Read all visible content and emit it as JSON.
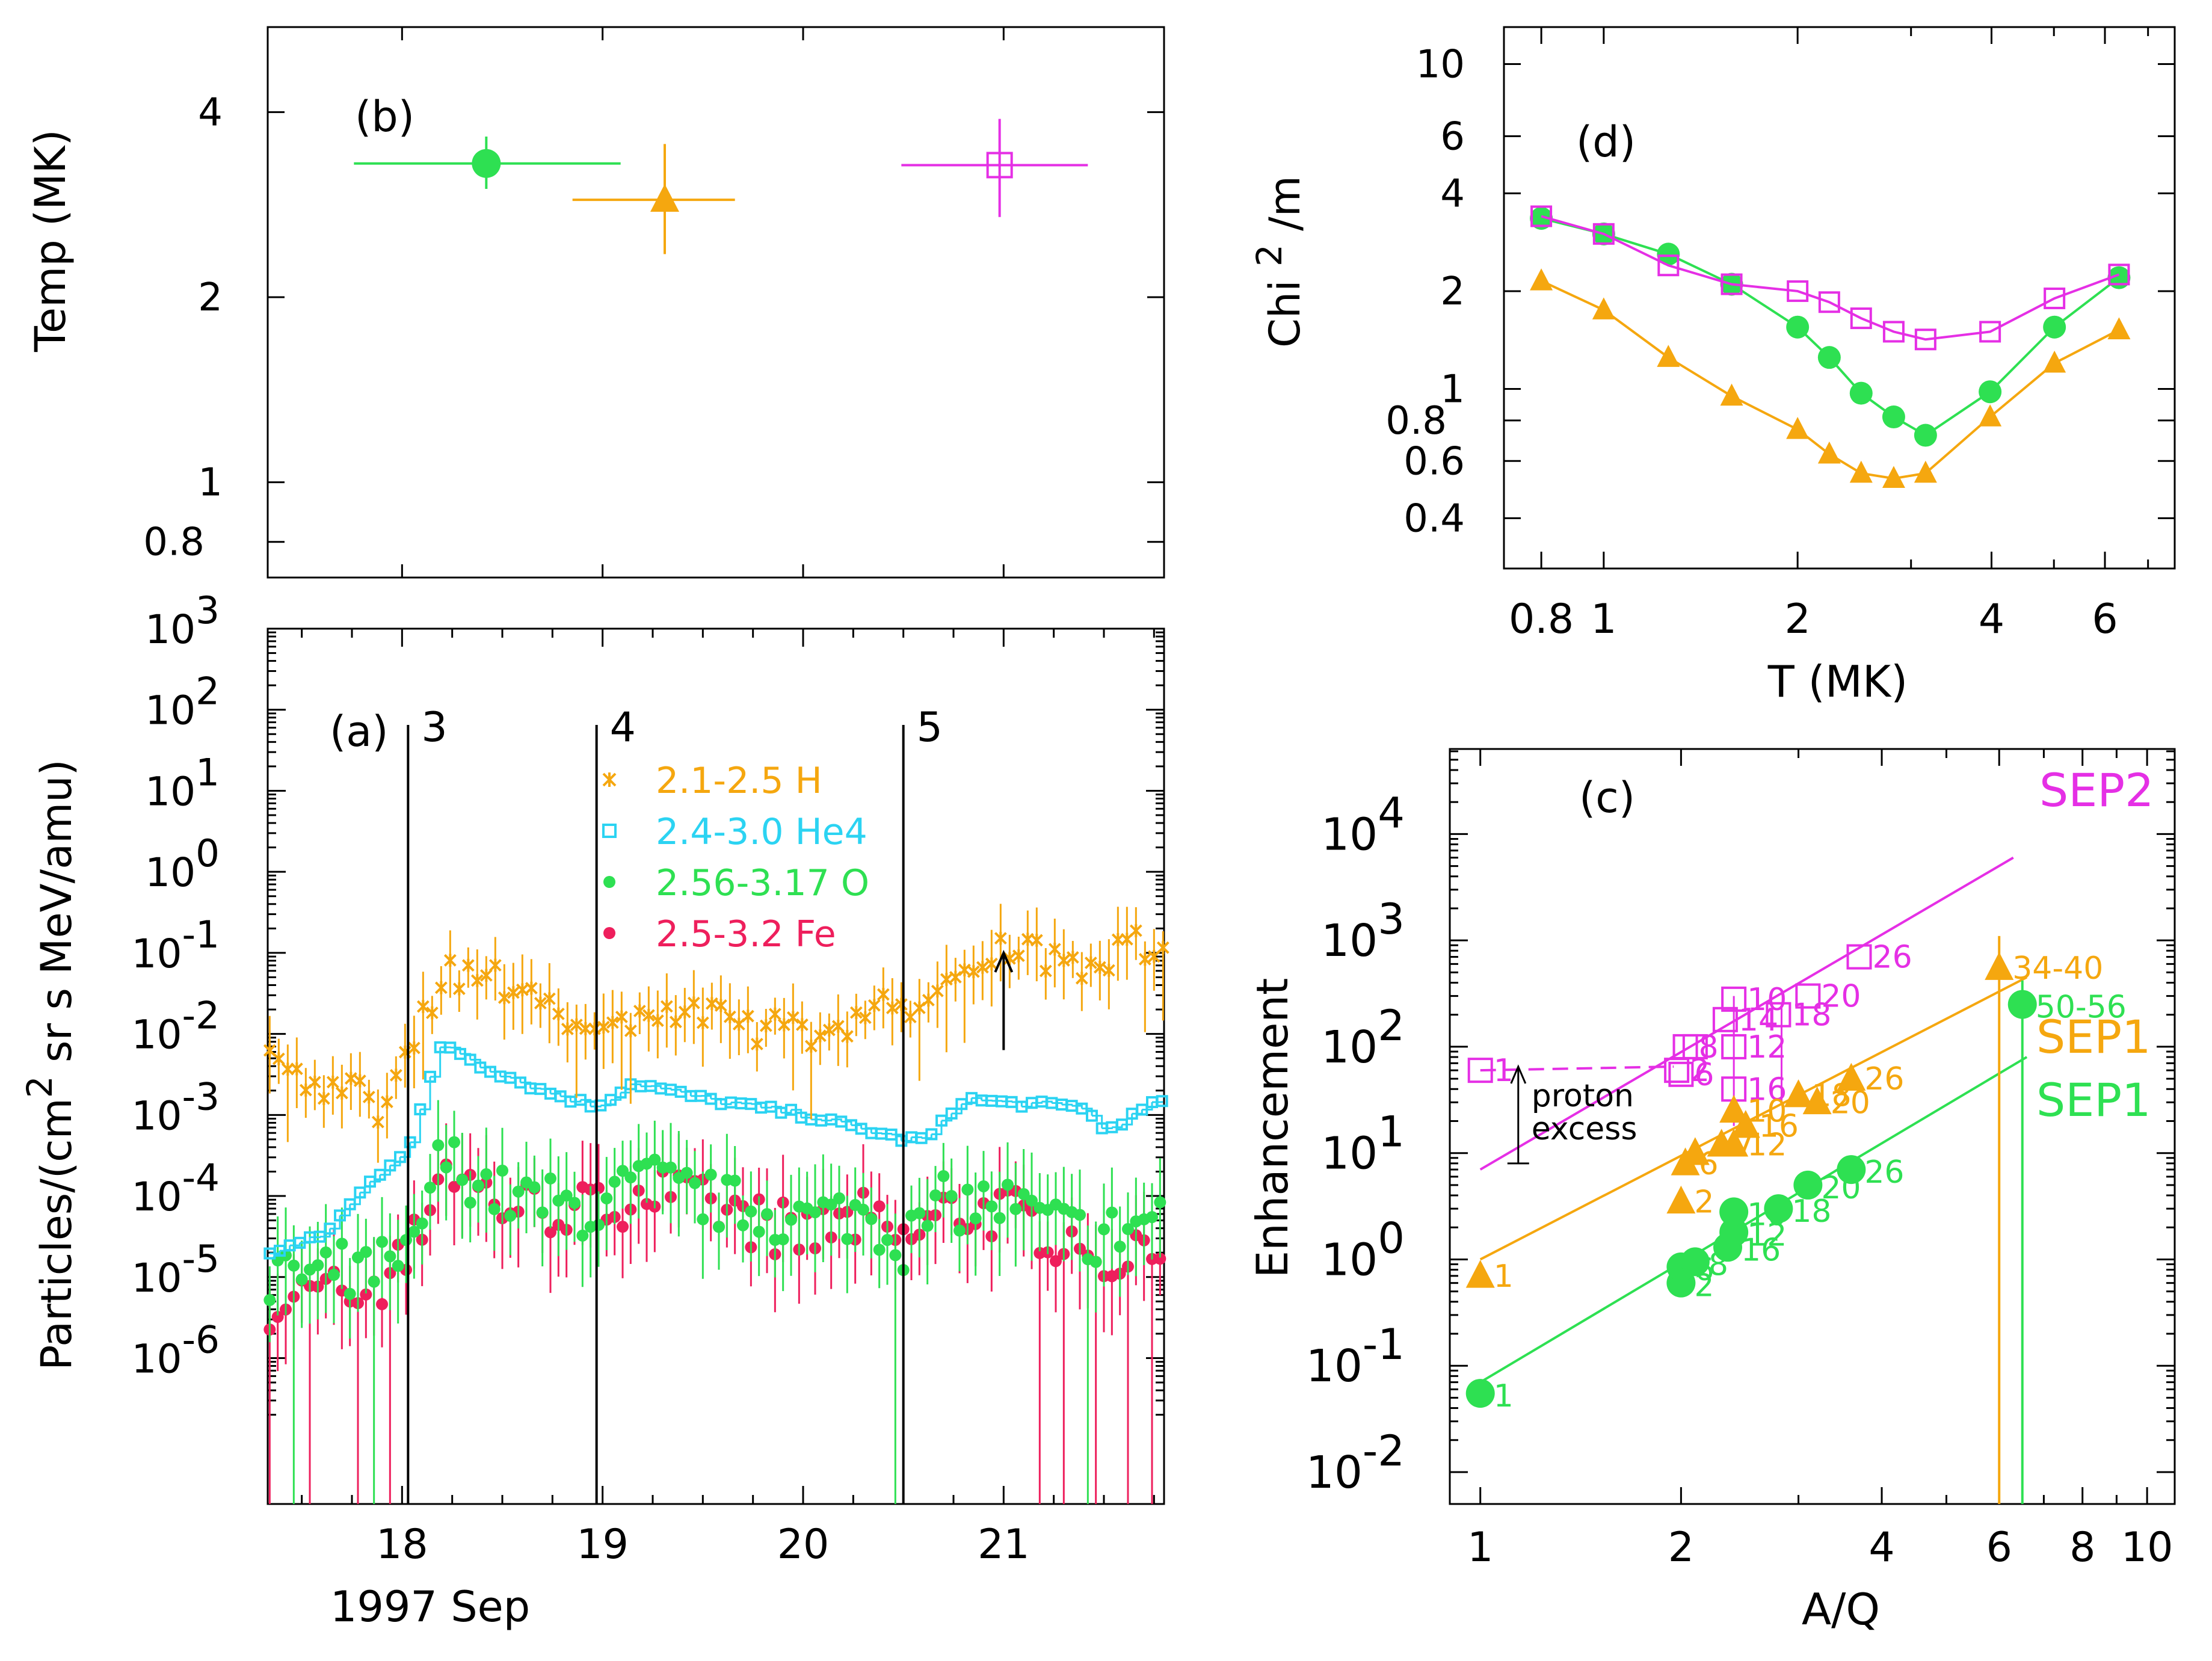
{
  "colors": {
    "H": "#f5a70f",
    "He": "#2bd3f2",
    "O": "#2ee052",
    "Fe": "#ee1f5c",
    "SEP2": "#e52fe5",
    "axis": "#000000"
  },
  "chart_data": [
    {
      "id": "b",
      "type": "scatter",
      "panel_label": "(b)",
      "ylabel": "Temp (MK)",
      "yscale": "log",
      "ylim": [
        0.7,
        5.5
      ],
      "xlim": [
        17.33,
        21.8
      ],
      "yticks": [
        {
          "v": 4,
          "t": "4"
        },
        {
          "v": 2,
          "t": "2"
        },
        {
          "v": 1,
          "t": "1"
        },
        {
          "v": 0.8,
          "t": "0.8"
        }
      ],
      "points": [
        {
          "series": "O",
          "symbol": "circle",
          "x": 18.42,
          "y": 3.3,
          "xerr": [
            17.76,
            19.09
          ],
          "yerr": [
            3.0,
            3.65
          ]
        },
        {
          "series": "H",
          "symbol": "triangle",
          "x": 19.31,
          "y": 2.88,
          "xerr": [
            18.85,
            19.66
          ],
          "yerr": [
            2.35,
            3.55
          ]
        },
        {
          "series": "SEP2",
          "symbol": "square",
          "x": 20.98,
          "y": 3.28,
          "xerr": [
            20.49,
            21.42
          ],
          "yerr": [
            2.7,
            3.9
          ]
        }
      ]
    },
    {
      "id": "a",
      "type": "scatter",
      "panel_label": "(a)",
      "ylabel": "Particles/(cm2 sr s MeV/amu)",
      "ylabel_parts": [
        "Particles/(cm",
        "2",
        " sr s MeV/amu)"
      ],
      "xlabel": "1997 Sep",
      "yscale": "log",
      "ylim": [
        -7.8,
        3
      ],
      "xlim": [
        17.33,
        21.8
      ],
      "xticks": [
        {
          "v": 18,
          "t": "18"
        },
        {
          "v": 19,
          "t": "19"
        },
        {
          "v": 20,
          "t": "20"
        },
        {
          "v": 21,
          "t": "21"
        }
      ],
      "yticks": [
        {
          "e": 3,
          "base": "10",
          "exp": "3"
        },
        {
          "e": 2,
          "base": "10",
          "exp": "2"
        },
        {
          "e": 1,
          "base": "10",
          "exp": "1"
        },
        {
          "e": 0,
          "base": "10",
          "exp": "0"
        },
        {
          "e": -1,
          "base": "10",
          "exp": "-1"
        },
        {
          "e": -2,
          "base": "10",
          "exp": "-2"
        },
        {
          "e": -3,
          "base": "10",
          "exp": "-3"
        },
        {
          "e": -4,
          "base": "10",
          "exp": "-4"
        },
        {
          "e": -5,
          "base": "10",
          "exp": "-5"
        },
        {
          "e": -6,
          "base": "10",
          "exp": "-6"
        }
      ],
      "event_lines": [
        {
          "x": 18.03,
          "label": "3"
        },
        {
          "x": 18.97,
          "label": "4"
        },
        {
          "x": 20.5,
          "label": "5"
        }
      ],
      "legend": [
        {
          "series": "H",
          "symbol": "x",
          "label": "2.1-2.5 H"
        },
        {
          "series": "He",
          "symbol": "square",
          "label": "2.4-3.0 He4"
        },
        {
          "series": "O",
          "symbol": "circle",
          "label": "2.56-3.17 O"
        },
        {
          "series": "Fe",
          "symbol": "circle",
          "label": "2.5-3.2 Fe"
        }
      ],
      "arrow": {
        "x": 21.0,
        "from_log": -2.2,
        "to_log": -1.0
      },
      "series": [
        {
          "name": "2.1-2.5 H",
          "key": "H",
          "marker": "x",
          "step": 0.045,
          "jitter": 0.22,
          "profile_log10": [
            [
              17.33,
              -2.3
            ],
            [
              17.6,
              -2.6
            ],
            [
              17.9,
              -2.9
            ],
            [
              18.0,
              -2.2
            ],
            [
              18.1,
              -1.8
            ],
            [
              18.25,
              -1.2
            ],
            [
              18.5,
              -1.4
            ],
            [
              18.75,
              -1.5
            ],
            [
              18.95,
              -2.1
            ],
            [
              19.2,
              -1.7
            ],
            [
              19.5,
              -1.8
            ],
            [
              20.0,
              -2.0
            ],
            [
              20.2,
              -1.85
            ],
            [
              20.5,
              -1.6
            ],
            [
              20.62,
              -1.8
            ],
            [
              20.75,
              -1.2
            ],
            [
              21.0,
              -0.9
            ],
            [
              21.4,
              -1.1
            ],
            [
              21.8,
              -0.8
            ]
          ]
        },
        {
          "name": "2.4-3.0 He4",
          "key": "He",
          "marker": "square",
          "step": 0.05,
          "jitter": 0.04,
          "profile_log10": [
            [
              17.33,
              -4.7
            ],
            [
              17.6,
              -4.5
            ],
            [
              17.85,
              -3.8
            ],
            [
              18.03,
              -3.4
            ],
            [
              18.2,
              -2.1
            ],
            [
              18.4,
              -2.4
            ],
            [
              18.7,
              -2.7
            ],
            [
              18.97,
              -2.9
            ],
            [
              19.15,
              -2.6
            ],
            [
              19.5,
              -2.8
            ],
            [
              20.0,
              -3.0
            ],
            [
              20.5,
              -3.3
            ],
            [
              20.62,
              -3.3
            ],
            [
              20.8,
              -2.8
            ],
            [
              21.0,
              -2.85
            ],
            [
              21.4,
              -2.9
            ],
            [
              21.5,
              -3.2
            ],
            [
              21.8,
              -2.8
            ]
          ]
        },
        {
          "name": "2.56-3.17 O",
          "key": "O",
          "marker": "circle",
          "step": 0.04,
          "jitter": 0.35,
          "profile_log10": [
            [
              17.33,
              -5.0
            ],
            [
              17.8,
              -4.9
            ],
            [
              18.03,
              -4.8
            ],
            [
              18.2,
              -3.5
            ],
            [
              18.5,
              -4.0
            ],
            [
              18.97,
              -4.2
            ],
            [
              19.2,
              -3.8
            ],
            [
              19.6,
              -4.1
            ],
            [
              20.0,
              -4.3
            ],
            [
              20.3,
              -4.2
            ],
            [
              20.5,
              -4.6
            ],
            [
              20.7,
              -4.1
            ],
            [
              21.0,
              -4.1
            ],
            [
              21.3,
              -4.4
            ],
            [
              21.5,
              -4.5
            ],
            [
              21.8,
              -4.2
            ]
          ]
        },
        {
          "name": "2.5-3.2 Fe",
          "key": "Fe",
          "marker": "circle",
          "step": 0.04,
          "jitter": 0.35,
          "profile_log10": [
            [
              17.33,
              -5.3
            ],
            [
              17.8,
              -5.2
            ],
            [
              18.03,
              -4.8
            ],
            [
              18.2,
              -3.6
            ],
            [
              18.5,
              -4.1
            ],
            [
              18.97,
              -4.2
            ],
            [
              19.2,
              -3.9
            ],
            [
              19.6,
              -4.2
            ],
            [
              20.0,
              -4.5
            ],
            [
              20.3,
              -4.3
            ],
            [
              20.5,
              -4.6
            ],
            [
              20.7,
              -4.2
            ],
            [
              21.0,
              -4.2
            ],
            [
              21.3,
              -4.5
            ],
            [
              21.5,
              -4.8
            ],
            [
              21.8,
              -4.4
            ]
          ]
        }
      ]
    },
    {
      "id": "d",
      "type": "line",
      "panel_label": "(d)",
      "xlabel": "T (MK)",
      "ylabel": "Chi 2 /m",
      "ylabel_parts": [
        "Chi ",
        "2",
        " /m"
      ],
      "xscale": "log",
      "yscale": "log",
      "xlim": [
        0.7,
        7.7
      ],
      "ylim": [
        0.28,
        13
      ],
      "xticks": [
        {
          "v": 0.8,
          "t": "0.8"
        },
        {
          "v": 1,
          "t": "1"
        },
        {
          "v": 2,
          "t": "2"
        },
        {
          "v": 4,
          "t": "4"
        },
        {
          "v": 6,
          "t": "6"
        }
      ],
      "yticks": [
        {
          "v": 10,
          "t": "10"
        },
        {
          "v": 6,
          "t": "6"
        },
        {
          "v": 4,
          "t": "4"
        },
        {
          "v": 2,
          "t": "2"
        },
        {
          "v": 1,
          "t": "1"
        },
        {
          "v": 0.8,
          "t": "0.8"
        },
        {
          "v": 0.6,
          "t": "0.6"
        },
        {
          "v": 0.4,
          "t": "0.4"
        }
      ],
      "series": [
        {
          "key": "SEP2",
          "marker": "square",
          "x": [
            0.8,
            1.0,
            1.26,
            1.58,
            2.0,
            2.24,
            2.51,
            2.82,
            3.16,
            3.98,
            5.01,
            6.31
          ],
          "y": [
            3.4,
            3.0,
            2.4,
            2.1,
            2.0,
            1.85,
            1.65,
            1.5,
            1.42,
            1.5,
            1.9,
            2.25
          ]
        },
        {
          "key": "O",
          "marker": "circle",
          "x": [
            0.8,
            1.0,
            1.26,
            1.58,
            2.0,
            2.24,
            2.51,
            2.82,
            3.16,
            3.98,
            5.01,
            6.31
          ],
          "y": [
            3.35,
            3.0,
            2.6,
            2.1,
            1.55,
            1.25,
            0.97,
            0.82,
            0.72,
            0.98,
            1.55,
            2.2
          ]
        },
        {
          "key": "H",
          "marker": "triangle",
          "x": [
            0.8,
            1.0,
            1.26,
            1.58,
            2.0,
            2.24,
            2.51,
            2.82,
            3.16,
            3.98,
            5.01,
            6.31
          ],
          "y": [
            2.15,
            1.75,
            1.25,
            0.95,
            0.75,
            0.63,
            0.55,
            0.53,
            0.55,
            0.82,
            1.2,
            1.52
          ]
        }
      ]
    },
    {
      "id": "c",
      "type": "scatter",
      "panel_label": "(c)",
      "xlabel": "A/Q",
      "ylabel": "Enhancement",
      "xscale": "log",
      "yscale": "log",
      "xlim": [
        0.9,
        11
      ],
      "ylim": [
        -2.3,
        4.8
      ],
      "xticks": [
        {
          "v": 1,
          "t": "1"
        },
        {
          "v": 2,
          "t": "2"
        },
        {
          "v": 4,
          "t": "4"
        },
        {
          "v": 6,
          "t": "6"
        },
        {
          "v": 8,
          "t": "8"
        },
        {
          "v": 10,
          "t": "10"
        }
      ],
      "yticks": [
        {
          "e": 4,
          "base": "10",
          "exp": "4"
        },
        {
          "e": 3,
          "base": "10",
          "exp": "3"
        },
        {
          "e": 2,
          "base": "10",
          "exp": "2"
        },
        {
          "e": 1,
          "base": "10",
          "exp": "1"
        },
        {
          "e": 0,
          "base": "10",
          "exp": "0"
        },
        {
          "e": -1,
          "base": "10",
          "exp": "-1"
        },
        {
          "e": -2,
          "base": "10",
          "exp": "-2"
        }
      ],
      "annotation": {
        "lines": [
          "proton",
          "excess"
        ],
        "x": 1.14,
        "y_from": 8,
        "y_to": 65
      },
      "fits": [
        {
          "key": "SEP2",
          "label": "SEP2",
          "x0": 1.0,
          "y0": 7,
          "x1": 6.3,
          "y1": 6000
        },
        {
          "key": "H",
          "label": "SEP1",
          "x0": 1.0,
          "y0": 1.0,
          "x1": 6.6,
          "y1": 450
        },
        {
          "key": "O",
          "label": "SEP1",
          "x0": 1.0,
          "y0": 0.07,
          "x1": 6.6,
          "y1": 80
        }
      ],
      "series": [
        {
          "key": "SEP2",
          "marker": "square",
          "points": [
            {
              "x": 1.0,
              "y": 60,
              "lab": "1"
            },
            {
              "x": 1.97,
              "y": 60,
              "lab": "2"
            },
            {
              "x": 2.0,
              "y": 55,
              "lab": "6"
            },
            {
              "x": 2.03,
              "y": 100,
              "lab": "8"
            },
            {
              "x": 2.1,
              "y": 100,
              "lab": ""
            },
            {
              "x": 2.4,
              "y": 40,
              "lab": "16"
            },
            {
              "x": 2.4,
              "y": 100,
              "lab": "12"
            },
            {
              "x": 2.33,
              "y": 180,
              "lab": "14"
            },
            {
              "x": 2.4,
              "y": 280,
              "lab": "10"
            },
            {
              "x": 2.8,
              "y": 200,
              "lab": "18"
            },
            {
              "x": 3.1,
              "y": 300,
              "lab": "20"
            },
            {
              "x": 3.7,
              "y": 700,
              "lab": "26"
            }
          ]
        },
        {
          "key": "H",
          "marker": "triangle",
          "points": [
            {
              "x": 1.0,
              "y": 0.7,
              "lab": "1"
            },
            {
              "x": 2.0,
              "y": 3.5,
              "lab": "2"
            },
            {
              "x": 2.03,
              "y": 8,
              "lab": "6"
            },
            {
              "x": 2.1,
              "y": 10,
              "lab": ""
            },
            {
              "x": 2.3,
              "y": 12,
              "lab": "7"
            },
            {
              "x": 2.4,
              "y": 12,
              "lab": "12"
            },
            {
              "x": 2.5,
              "y": 18,
              "lab": "16"
            },
            {
              "x": 2.4,
              "y": 25,
              "lab": "10"
            },
            {
              "x": 3.0,
              "y": 35,
              "lab": "18"
            },
            {
              "x": 3.2,
              "y": 30,
              "lab": "20"
            },
            {
              "x": 3.6,
              "y": 50,
              "lab": "26"
            },
            {
              "x": 6.0,
              "y": 550,
              "lab": "34-40"
            }
          ]
        },
        {
          "key": "O",
          "marker": "circle",
          "points": [
            {
              "x": 1.0,
              "y": 0.055,
              "lab": "1"
            },
            {
              "x": 2.0,
              "y": 0.6,
              "lab": "2"
            },
            {
              "x": 2.0,
              "y": 0.85,
              "lab": "6"
            },
            {
              "x": 2.1,
              "y": 0.95,
              "lab": "8"
            },
            {
              "x": 2.35,
              "y": 1.3,
              "lab": "16"
            },
            {
              "x": 2.4,
              "y": 1.8,
              "lab": "12"
            },
            {
              "x": 2.4,
              "y": 2.8,
              "lab": "10"
            },
            {
              "x": 2.8,
              "y": 3.0,
              "lab": "18"
            },
            {
              "x": 3.1,
              "y": 5.0,
              "lab": "20"
            },
            {
              "x": 3.6,
              "y": 7.0,
              "lab": "26"
            },
            {
              "x": 6.5,
              "y": 250,
              "lab": "50-56"
            }
          ]
        }
      ]
    }
  ]
}
